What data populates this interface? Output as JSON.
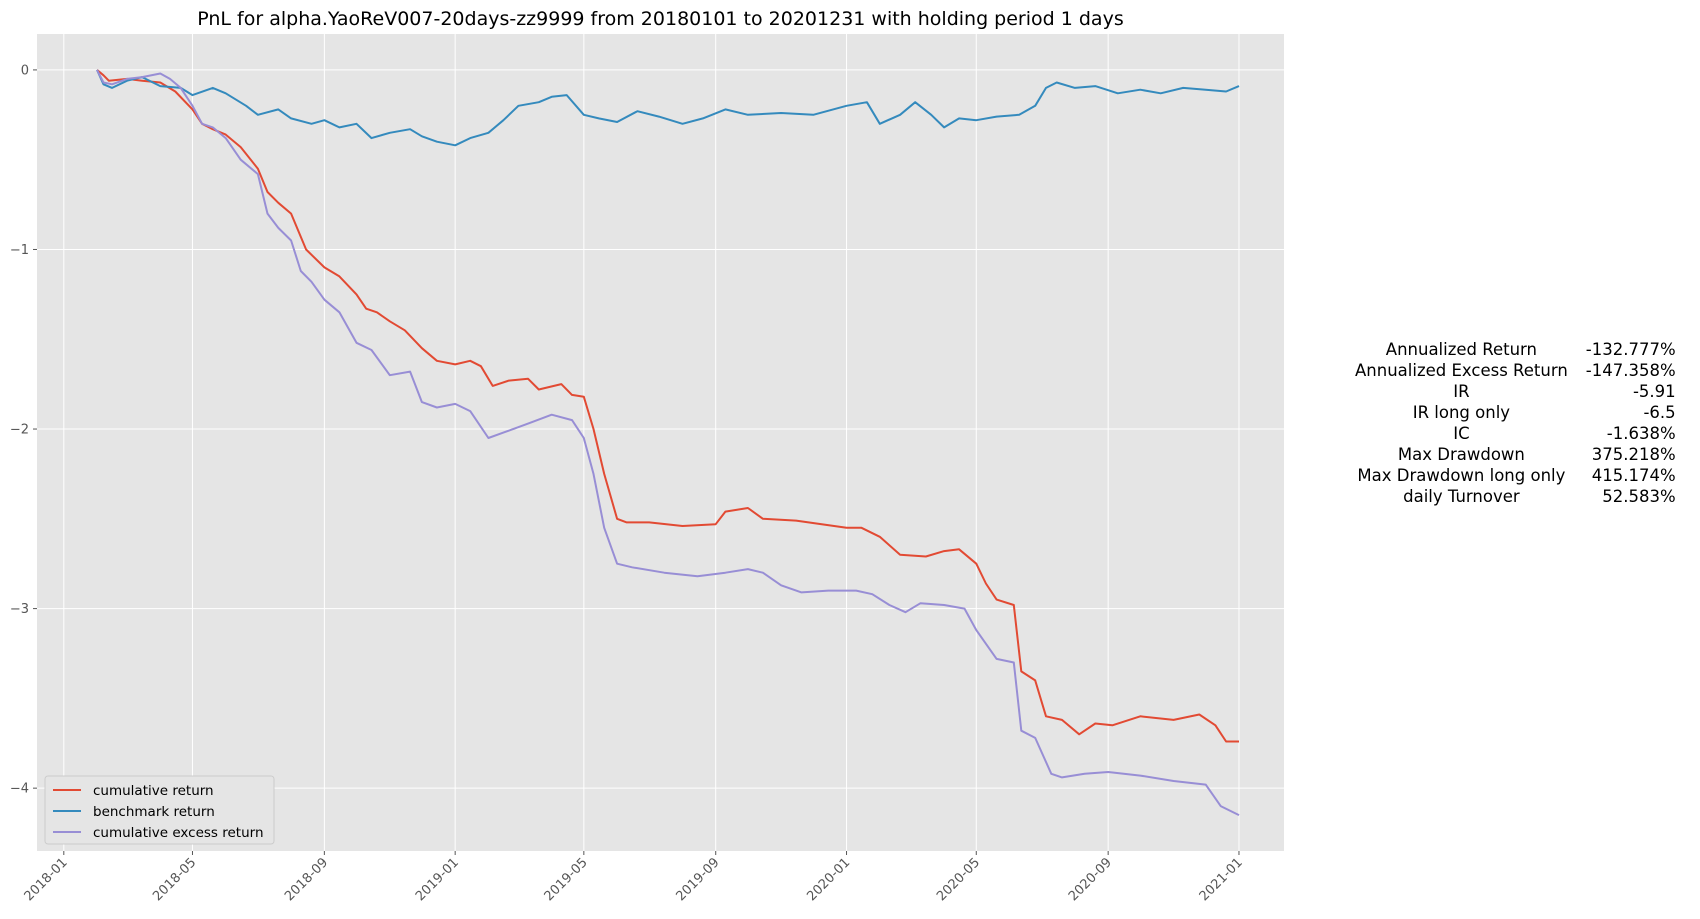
{
  "chart_data": {
    "type": "line",
    "title": "PnL for alpha.YaoReV007-20days-zz9999 from 20180101 to 20201231 with holding period 1 days",
    "xlabel": "",
    "ylabel": "",
    "xlim": [
      "2017-12-07",
      "2021-02-12"
    ],
    "ylim": [
      -4.35,
      0.2
    ],
    "x_ticks": [
      "2018-01",
      "2018-05",
      "2018-09",
      "2019-01",
      "2019-05",
      "2019-09",
      "2020-01",
      "2020-05",
      "2020-09",
      "2021-01"
    ],
    "y_ticks": [
      0,
      -1,
      -2,
      -3,
      -4
    ],
    "y_tick_labels": [
      "0",
      "−1",
      "−2",
      "−3",
      "−4"
    ],
    "grid": true,
    "legend_position": "lower-left",
    "series": [
      {
        "name": "cumulative return",
        "color": "#e24a33",
        "points": [
          [
            "2018-02-01",
            0
          ],
          [
            "2018-02-07",
            -0.03
          ],
          [
            "2018-02-12",
            -0.06
          ],
          [
            "2018-03-01",
            -0.05
          ],
          [
            "2018-03-15",
            -0.06
          ],
          [
            "2018-04-01",
            -0.07
          ],
          [
            "2018-04-15",
            -0.12
          ],
          [
            "2018-05-01",
            -0.22
          ],
          [
            "2018-05-10",
            -0.3
          ],
          [
            "2018-05-20",
            -0.33
          ],
          [
            "2018-06-01",
            -0.36
          ],
          [
            "2018-06-15",
            -0.43
          ],
          [
            "2018-07-01",
            -0.55
          ],
          [
            "2018-07-10",
            -0.68
          ],
          [
            "2018-07-20",
            -0.74
          ],
          [
            "2018-08-01",
            -0.8
          ],
          [
            "2018-08-15",
            -1.0
          ],
          [
            "2018-09-01",
            -1.1
          ],
          [
            "2018-09-15",
            -1.15
          ],
          [
            "2018-10-01",
            -1.25
          ],
          [
            "2018-10-10",
            -1.33
          ],
          [
            "2018-10-20",
            -1.35
          ],
          [
            "2018-11-01",
            -1.4
          ],
          [
            "2018-11-15",
            -1.45
          ],
          [
            "2018-12-01",
            -1.55
          ],
          [
            "2018-12-15",
            -1.62
          ],
          [
            "2019-01-01",
            -1.64
          ],
          [
            "2019-01-15",
            -1.62
          ],
          [
            "2019-01-25",
            -1.65
          ],
          [
            "2019-02-05",
            -1.76
          ],
          [
            "2019-02-20",
            -1.73
          ],
          [
            "2019-03-10",
            -1.72
          ],
          [
            "2019-03-20",
            -1.78
          ],
          [
            "2019-04-10",
            -1.75
          ],
          [
            "2019-04-20",
            -1.81
          ],
          [
            "2019-05-01",
            -1.82
          ],
          [
            "2019-05-10",
            -2.0
          ],
          [
            "2019-05-20",
            -2.25
          ],
          [
            "2019-06-01",
            -2.5
          ],
          [
            "2019-06-10",
            -2.52
          ],
          [
            "2019-07-01",
            -2.52
          ],
          [
            "2019-08-01",
            -2.54
          ],
          [
            "2019-09-01",
            -2.53
          ],
          [
            "2019-09-10",
            -2.46
          ],
          [
            "2019-10-01",
            -2.44
          ],
          [
            "2019-10-15",
            -2.5
          ],
          [
            "2019-11-15",
            -2.51
          ],
          [
            "2020-01-01",
            -2.55
          ],
          [
            "2020-01-15",
            -2.55
          ],
          [
            "2020-02-01",
            -2.6
          ],
          [
            "2020-02-20",
            -2.7
          ],
          [
            "2020-03-15",
            -2.71
          ],
          [
            "2020-04-01",
            -2.68
          ],
          [
            "2020-04-15",
            -2.67
          ],
          [
            "2020-05-01",
            -2.75
          ],
          [
            "2020-05-10",
            -2.86
          ],
          [
            "2020-05-20",
            -2.95
          ],
          [
            "2020-06-05",
            -2.98
          ],
          [
            "2020-06-12",
            -3.35
          ],
          [
            "2020-06-25",
            -3.4
          ],
          [
            "2020-07-05",
            -3.6
          ],
          [
            "2020-07-20",
            -3.62
          ],
          [
            "2020-08-05",
            -3.7
          ],
          [
            "2020-08-20",
            -3.64
          ],
          [
            "2020-09-05",
            -3.65
          ],
          [
            "2020-10-01",
            -3.6
          ],
          [
            "2020-11-01",
            -3.62
          ],
          [
            "2020-11-25",
            -3.59
          ],
          [
            "2020-12-10",
            -3.65
          ],
          [
            "2020-12-20",
            -3.74
          ],
          [
            "2021-01-01",
            -3.74
          ]
        ]
      },
      {
        "name": "benchmark return",
        "color": "#348abd",
        "points": [
          [
            "2018-02-01",
            0
          ],
          [
            "2018-02-07",
            -0.08
          ],
          [
            "2018-02-15",
            -0.1
          ],
          [
            "2018-03-01",
            -0.06
          ],
          [
            "2018-03-15",
            -0.04
          ],
          [
            "2018-04-01",
            -0.09
          ],
          [
            "2018-04-20",
            -0.1
          ],
          [
            "2018-05-01",
            -0.14
          ],
          [
            "2018-05-20",
            -0.1
          ],
          [
            "2018-06-01",
            -0.13
          ],
          [
            "2018-06-20",
            -0.2
          ],
          [
            "2018-07-01",
            -0.25
          ],
          [
            "2018-07-20",
            -0.22
          ],
          [
            "2018-08-01",
            -0.27
          ],
          [
            "2018-08-20",
            -0.3
          ],
          [
            "2018-09-01",
            -0.28
          ],
          [
            "2018-09-15",
            -0.32
          ],
          [
            "2018-10-01",
            -0.3
          ],
          [
            "2018-10-15",
            -0.38
          ],
          [
            "2018-11-01",
            -0.35
          ],
          [
            "2018-11-20",
            -0.33
          ],
          [
            "2018-12-01",
            -0.37
          ],
          [
            "2018-12-15",
            -0.4
          ],
          [
            "2019-01-01",
            -0.42
          ],
          [
            "2019-01-15",
            -0.38
          ],
          [
            "2019-02-01",
            -0.35
          ],
          [
            "2019-02-15",
            -0.28
          ],
          [
            "2019-03-01",
            -0.2
          ],
          [
            "2019-03-20",
            -0.18
          ],
          [
            "2019-04-01",
            -0.15
          ],
          [
            "2019-04-15",
            -0.14
          ],
          [
            "2019-05-01",
            -0.25
          ],
          [
            "2019-05-15",
            -0.27
          ],
          [
            "2019-06-01",
            -0.29
          ],
          [
            "2019-06-20",
            -0.23
          ],
          [
            "2019-07-10",
            -0.26
          ],
          [
            "2019-08-01",
            -0.3
          ],
          [
            "2019-08-20",
            -0.27
          ],
          [
            "2019-09-10",
            -0.22
          ],
          [
            "2019-10-01",
            -0.25
          ],
          [
            "2019-11-01",
            -0.24
          ],
          [
            "2019-12-01",
            -0.25
          ],
          [
            "2020-01-01",
            -0.2
          ],
          [
            "2020-01-20",
            -0.18
          ],
          [
            "2020-02-01",
            -0.3
          ],
          [
            "2020-02-20",
            -0.25
          ],
          [
            "2020-03-05",
            -0.18
          ],
          [
            "2020-03-20",
            -0.25
          ],
          [
            "2020-04-01",
            -0.32
          ],
          [
            "2020-04-15",
            -0.27
          ],
          [
            "2020-05-01",
            -0.28
          ],
          [
            "2020-05-20",
            -0.26
          ],
          [
            "2020-06-10",
            -0.25
          ],
          [
            "2020-06-25",
            -0.2
          ],
          [
            "2020-07-05",
            -0.1
          ],
          [
            "2020-07-15",
            -0.07
          ],
          [
            "2020-08-01",
            -0.1
          ],
          [
            "2020-08-20",
            -0.09
          ],
          [
            "2020-09-10",
            -0.13
          ],
          [
            "2020-10-01",
            -0.11
          ],
          [
            "2020-10-20",
            -0.13
          ],
          [
            "2020-11-10",
            -0.1
          ],
          [
            "2020-12-01",
            -0.11
          ],
          [
            "2020-12-20",
            -0.12
          ],
          [
            "2021-01-01",
            -0.09
          ]
        ]
      },
      {
        "name": "cumulative excess return",
        "color": "#988ed5",
        "points": [
          [
            "2018-02-01",
            0
          ],
          [
            "2018-02-07",
            -0.07
          ],
          [
            "2018-02-15",
            -0.08
          ],
          [
            "2018-03-01",
            -0.05
          ],
          [
            "2018-03-15",
            -0.04
          ],
          [
            "2018-04-01",
            -0.02
          ],
          [
            "2018-04-10",
            -0.05
          ],
          [
            "2018-04-20",
            -0.1
          ],
          [
            "2018-05-01",
            -0.2
          ],
          [
            "2018-05-10",
            -0.3
          ],
          [
            "2018-05-20",
            -0.32
          ],
          [
            "2018-06-01",
            -0.38
          ],
          [
            "2018-06-15",
            -0.5
          ],
          [
            "2018-07-01",
            -0.58
          ],
          [
            "2018-07-10",
            -0.8
          ],
          [
            "2018-07-20",
            -0.88
          ],
          [
            "2018-08-01",
            -0.95
          ],
          [
            "2018-08-10",
            -1.12
          ],
          [
            "2018-08-20",
            -1.18
          ],
          [
            "2018-09-01",
            -1.28
          ],
          [
            "2018-09-15",
            -1.35
          ],
          [
            "2018-10-01",
            -1.52
          ],
          [
            "2018-10-15",
            -1.56
          ],
          [
            "2018-11-01",
            -1.7
          ],
          [
            "2018-11-20",
            -1.68
          ],
          [
            "2018-12-01",
            -1.85
          ],
          [
            "2018-12-15",
            -1.88
          ],
          [
            "2019-01-01",
            -1.86
          ],
          [
            "2019-01-15",
            -1.9
          ],
          [
            "2019-02-01",
            -2.05
          ],
          [
            "2019-02-15",
            -2.02
          ],
          [
            "2019-03-10",
            -1.97
          ],
          [
            "2019-04-01",
            -1.92
          ],
          [
            "2019-04-20",
            -1.95
          ],
          [
            "2019-05-01",
            -2.05
          ],
          [
            "2019-05-10",
            -2.25
          ],
          [
            "2019-05-20",
            -2.55
          ],
          [
            "2019-06-01",
            -2.75
          ],
          [
            "2019-06-15",
            -2.77
          ],
          [
            "2019-07-15",
            -2.8
          ],
          [
            "2019-08-15",
            -2.82
          ],
          [
            "2019-09-10",
            -2.8
          ],
          [
            "2019-10-01",
            -2.78
          ],
          [
            "2019-10-15",
            -2.8
          ],
          [
            "2019-11-01",
            -2.87
          ],
          [
            "2019-11-20",
            -2.91
          ],
          [
            "2019-12-15",
            -2.9
          ],
          [
            "2020-01-10",
            -2.9
          ],
          [
            "2020-01-25",
            -2.92
          ],
          [
            "2020-02-10",
            -2.98
          ],
          [
            "2020-02-25",
            -3.02
          ],
          [
            "2020-03-10",
            -2.97
          ],
          [
            "2020-04-01",
            -2.98
          ],
          [
            "2020-04-20",
            -3.0
          ],
          [
            "2020-05-01",
            -3.12
          ],
          [
            "2020-05-20",
            -3.28
          ],
          [
            "2020-06-05",
            -3.3
          ],
          [
            "2020-06-12",
            -3.68
          ],
          [
            "2020-06-25",
            -3.72
          ],
          [
            "2020-07-10",
            -3.92
          ],
          [
            "2020-07-20",
            -3.94
          ],
          [
            "2020-08-10",
            -3.92
          ],
          [
            "2020-09-01",
            -3.91
          ],
          [
            "2020-10-01",
            -3.93
          ],
          [
            "2020-11-01",
            -3.96
          ],
          [
            "2020-12-01",
            -3.98
          ],
          [
            "2020-12-15",
            -4.1
          ],
          [
            "2021-01-01",
            -4.15
          ]
        ]
      }
    ]
  },
  "stats": [
    {
      "name": "Annualized Return",
      "value": "-132.777%"
    },
    {
      "name": "Annualized Excess Return",
      "value": "-147.358%"
    },
    {
      "name": "IR",
      "value": "-5.91"
    },
    {
      "name": "IR long only",
      "value": "-6.5"
    },
    {
      "name": "IC",
      "value": "-1.638%"
    },
    {
      "name": "Max Drawdown",
      "value": "375.218%"
    },
    {
      "name": "Max Drawdown long only",
      "value": "415.174%"
    },
    {
      "name": "daily Turnover",
      "value": "52.583%"
    }
  ],
  "colors": {
    "plot_background": "#e5e5e5",
    "grid": "#ffffff"
  }
}
